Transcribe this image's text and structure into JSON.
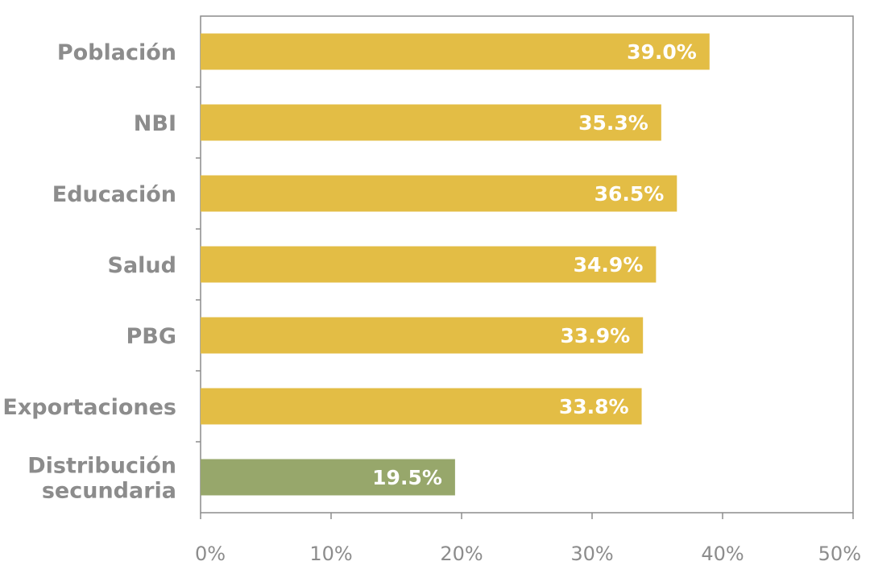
{
  "chart_data": {
    "type": "bar",
    "orientation": "horizontal",
    "categories": [
      [
        "Población"
      ],
      [
        "NBI"
      ],
      [
        "Educación"
      ],
      [
        "Salud"
      ],
      [
        "PBG"
      ],
      [
        "Exportaciones"
      ],
      [
        "Distribución",
        "secundaria"
      ]
    ],
    "values": [
      39.0,
      35.3,
      36.5,
      34.9,
      33.9,
      33.8,
      19.5
    ],
    "value_labels": [
      "39.0%",
      "35.3%",
      "36.5%",
      "34.9%",
      "33.9%",
      "33.8%",
      "19.5%"
    ],
    "bar_colors": [
      "#e3bd45",
      "#e3bd45",
      "#e3bd45",
      "#e3bd45",
      "#e3bd45",
      "#e3bd45",
      "#97a76b"
    ],
    "xlim": [
      0,
      50
    ],
    "x_ticks": [
      0,
      10,
      20,
      30,
      40,
      50
    ],
    "x_tick_labels": [
      "0%",
      "10%",
      "20%",
      "30%",
      "40%",
      "50%"
    ],
    "title": "",
    "xlabel": "",
    "ylabel": "",
    "grid": false,
    "legend": "none",
    "axis_color": "#8c8c8c"
  }
}
